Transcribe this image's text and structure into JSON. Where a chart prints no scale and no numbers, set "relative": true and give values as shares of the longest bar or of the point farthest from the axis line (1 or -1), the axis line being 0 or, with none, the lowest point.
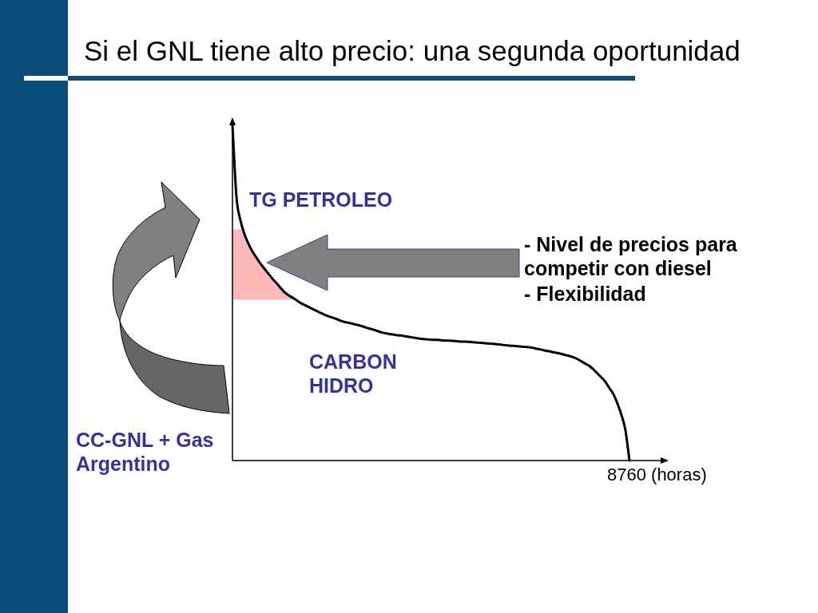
{
  "chart_data": {
    "type": "line",
    "title": "Si el GNL tiene alto precio: una segunda oportunidad",
    "annotations": [
      "TG PETROLEO",
      "- Nivel de precios para\ncompetir con diesel",
      "- Flexibilidad",
      "CARBON\nHIDRO",
      "CC-GNL + Gas\nArgentino",
      "8760 (horas)"
    ],
    "categories": [
      null,
      null,
      null,
      null,
      null,
      null,
      null,
      null,
      null,
      null,
      null,
      null,
      null,
      null,
      null,
      null,
      null,
      null,
      null,
      null,
      null,
      null,
      null,
      null,
      null,
      null,
      null,
      null,
      null,
      null,
      null,
      null,
      null,
      null,
      null,
      null,
      null,
      null,
      null,
      null,
      null,
      null,
      null,
      null,
      null,
      null,
      null,
      null,
      null,
      null,
      null,
      null,
      null,
      null,
      null,
      null,
      null,
      null,
      null,
      null,
      null,
      null,
      null,
      null,
      null,
      null,
      null,
      null,
      null,
      null,
      null,
      null,
      null,
      null,
      null,
      null,
      null,
      null,
      null,
      null,
      null,
      null,
      null,
      null,
      null,
      null,
      null,
      null,
      null,
      null,
      null,
      null,
      null,
      null,
      null,
      null,
      null,
      null,
      null,
      null
    ],
    "series": [
      {
        "color": "#000000",
        "values": [
          1.0,
          0.786,
          0.716,
          0.675,
          0.647,
          0.623,
          0.605,
          0.587,
          0.572,
          0.557,
          0.542,
          0.529,
          0.515,
          0.502,
          0.493,
          0.486,
          0.478,
          0.47,
          0.464,
          0.458,
          0.452,
          0.446,
          0.44,
          0.435,
          0.43,
          0.426,
          0.422,
          0.417,
          0.413,
          0.411,
          0.408,
          0.405,
          0.402,
          0.398,
          0.394,
          0.391,
          0.387,
          0.383,
          0.38,
          0.378,
          0.376,
          0.374,
          0.373,
          0.371,
          0.369,
          0.367,
          0.365,
          0.363,
          0.362,
          0.361,
          0.36,
          0.36,
          0.359,
          0.358,
          0.358,
          0.357,
          0.356,
          0.355,
          0.355,
          0.354,
          0.353,
          0.352,
          0.351,
          0.35,
          0.349,
          0.348,
          0.347,
          0.346,
          0.344,
          0.343,
          0.342,
          0.341,
          0.34,
          0.339,
          0.338,
          0.336,
          0.333,
          0.331,
          0.328,
          0.326,
          0.323,
          0.321,
          0.318,
          0.315,
          0.312,
          0.308,
          0.303,
          0.296,
          0.289,
          0.282,
          0.272,
          0.26,
          0.248,
          0.235,
          0.216,
          0.198,
          0.17,
          0.136,
          0.09,
          0
        ]
      }
    ],
    "relative": true,
    "bands": [
      {
        "axis": "y",
        "from": 0.48,
        "to": 0.69,
        "color": "#ff0000"
      }
    ],
    "marker": "none",
    "line_style": "solid"
  }
}
